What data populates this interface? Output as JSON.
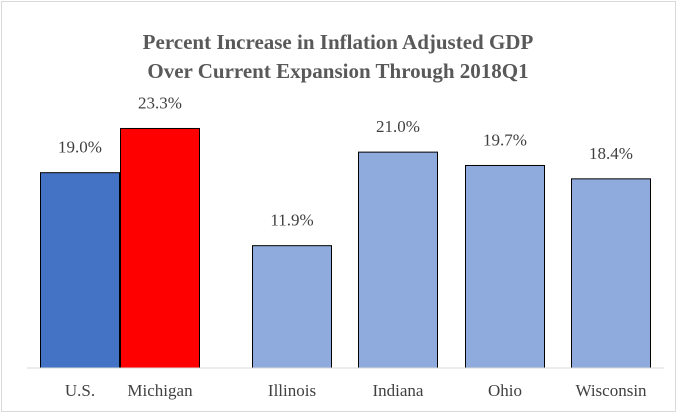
{
  "chart_data": {
    "type": "bar",
    "title": [
      "Percent Increase in Inflation Adjusted GDP",
      "Over Current Expansion Through 2018Q1"
    ],
    "categories": [
      "U.S.",
      "Michigan",
      "Illinois",
      "Indiana",
      "Ohio",
      "Wisconsin"
    ],
    "values": [
      19.0,
      23.3,
      11.9,
      21.0,
      19.7,
      18.4
    ],
    "value_labels": [
      "19.0%",
      "23.3%",
      "11.9%",
      "21.0%",
      "19.7%",
      "18.4%"
    ],
    "colors": [
      "#4472c4",
      "#ff0000",
      "#8faadc",
      "#8faadc",
      "#8faadc",
      "#8faadc"
    ],
    "ylim": [
      0,
      25
    ],
    "grid": false
  }
}
